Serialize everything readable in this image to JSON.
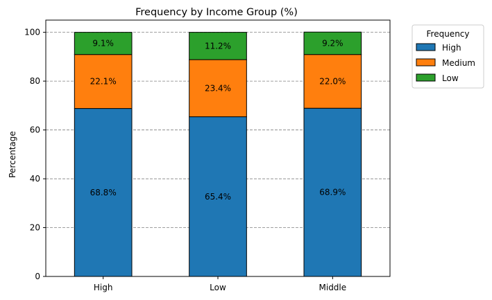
{
  "chart_data": {
    "type": "bar",
    "stacked": true,
    "title": "Frequency by Income Group (%)",
    "xlabel": "",
    "ylabel": "Percentage",
    "ylim": [
      0,
      105
    ],
    "yticks": [
      0,
      20,
      40,
      60,
      80,
      100
    ],
    "grid": "y dashed",
    "categories": [
      "High",
      "Low",
      "Middle"
    ],
    "series": [
      {
        "name": "High",
        "color": "#1f77b4",
        "values": [
          68.8,
          65.4,
          68.9
        ],
        "labels": [
          "68.8%",
          "65.4%",
          "68.9%"
        ]
      },
      {
        "name": "Medium",
        "color": "#ff7f0e",
        "values": [
          22.1,
          23.4,
          22.0
        ],
        "labels": [
          "22.1%",
          "23.4%",
          "22.0%"
        ]
      },
      {
        "name": "Low",
        "color": "#2ca02c",
        "values": [
          9.1,
          11.2,
          9.2
        ],
        "labels": [
          "9.1%",
          "11.2%",
          "9.2%"
        ]
      }
    ],
    "legend": {
      "title": "Frequency",
      "placement": "outside right, top"
    }
  }
}
